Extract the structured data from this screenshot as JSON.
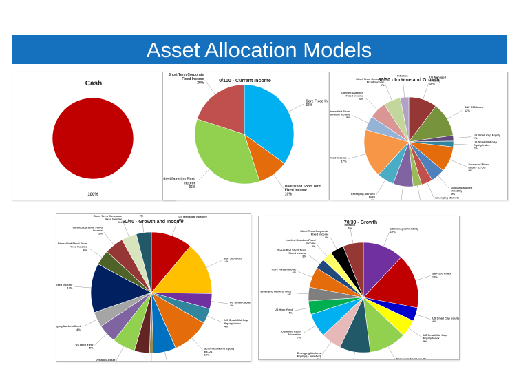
{
  "slide": {
    "title": "Asset Allocation Models"
  },
  "chart_data": [
    {
      "type": "pie",
      "title": "Cash",
      "slices": [
        {
          "label": "",
          "pct_label": "100%",
          "value": 100,
          "color": "#c00000"
        }
      ]
    },
    {
      "type": "pie",
      "title": "0/100 - Current Income",
      "slices": [
        {
          "label": "Core Fixed Income",
          "pct_label": "35%",
          "value": 35,
          "color": "#00b0f0"
        },
        {
          "label": "Diversified Short Term Fixed Income",
          "pct_label": "10%",
          "value": 10,
          "color": "#e46c0a"
        },
        {
          "label": "Limited Duration Fixed Income",
          "pct_label": "35%",
          "value": 35,
          "color": "#92d050"
        },
        {
          "label": "Short Term Corporate Fixed Income",
          "pct_label": "20%",
          "value": 20,
          "color": "#c0504d"
        }
      ]
    },
    {
      "type": "pie",
      "title": "50/50 - Income and Growth",
      "slices": [
        {
          "label": "US Managed Volatility",
          "pct_label": "10%",
          "value": 10,
          "color": "#953735"
        },
        {
          "label": "S&P 500 Index",
          "pct_label": "12%",
          "value": 12,
          "color": "#77933c"
        },
        {
          "label": "US Small Cap Equity",
          "pct_label": "2%",
          "value": 2,
          "color": "#5f497a"
        },
        {
          "label": "US Small/Mid Cap Equity Index",
          "pct_label": "2%",
          "value": 2,
          "color": "#31859c"
        },
        {
          "label": "Screened World Equity Ex-US",
          "pct_label": "9%",
          "value": 9,
          "color": "#e46c0a"
        },
        {
          "label": "Global Managed Volatility",
          "pct_label": "5%",
          "value": 5,
          "color": "#4f81bd"
        },
        {
          "label": "Emerging Markets Equity (+ Frontier)",
          "pct_label": "4%",
          "value": 4,
          "color": "#c0504d"
        },
        {
          "label": "Dynamic Asset Allocation",
          "pct_label": "3%",
          "value": 3,
          "color": "#9bbb59"
        },
        {
          "label": "US High Yield",
          "pct_label": "7%",
          "value": 7,
          "color": "#8064a2"
        },
        {
          "label": "Emerging Markets Debt",
          "pct_label": "6%",
          "value": 6,
          "color": "#4bacc6"
        },
        {
          "label": "Core Fixed Income",
          "pct_label": "17%",
          "value": 17,
          "color": "#f79646"
        },
        {
          "label": "Diversified Short Term Fixed Income",
          "pct_label": "5%",
          "value": 5,
          "color": "#95b3d7"
        },
        {
          "label": "Limited Duration Fixed Income",
          "pct_label": "6%",
          "value": 6,
          "color": "#d99694"
        },
        {
          "label": "Short Term Corporate Fixed Income",
          "pct_label": "6%",
          "value": 6,
          "color": "#c3d69b"
        },
        {
          "label": "Inflation",
          "pct_label": "3%",
          "value": 3,
          "color": "#b2a1c7"
        }
      ]
    },
    {
      "type": "pie",
      "title": "60/40 - Growth and Income",
      "slices": [
        {
          "label": "US Managed Volatility",
          "pct_label": "11%",
          "value": 11,
          "color": "#c00000"
        },
        {
          "label": "S&P 500 Index",
          "pct_label": "14%",
          "value": 14,
          "color": "#ffc000"
        },
        {
          "label": "US Small Cap Equity",
          "pct_label": "4%",
          "value": 4,
          "color": "#7030a0"
        },
        {
          "label": "US Small/Mid Cap Equity Index",
          "pct_label": "4%",
          "value": 4,
          "color": "#31859c"
        },
        {
          "label": "Screened World Equity Ex-US",
          "pct_label": "10%",
          "value": 10,
          "color": "#e46c0a"
        },
        {
          "label": "Global Managed Volatility",
          "pct_label": "6%",
          "value": 6,
          "color": "#0070c0"
        },
        {
          "label": "Emerging Markets Equity (+ Frontier)",
          "pct_label": "1%",
          "value": 1,
          "color": "#948a54"
        },
        {
          "label": "",
          "pct_label": "",
          "value": 4,
          "color": "#632523"
        },
        {
          "label": "Dynamic Asset Allocation",
          "pct_label": "6%",
          "value": 6,
          "color": "#92d050"
        },
        {
          "label": "US High Yield",
          "pct_label": "5%",
          "value": 5,
          "color": "#8064a2"
        },
        {
          "label": "Emerging Markets Debt",
          "pct_label": "4%",
          "value": 4,
          "color": "#a5a5a5"
        },
        {
          "label": "Core Fixed Income",
          "pct_label": "13%",
          "value": 13,
          "color": "#002060"
        },
        {
          "label": "Diversified Short Term Fixed Income",
          "pct_label": "4%",
          "value": 4,
          "color": "#4f6228"
        },
        {
          "label": "Limited Duration Fixed Income",
          "pct_label": "5%",
          "value": 5,
          "color": "#953735"
        },
        {
          "label": "Short Term Corporate Fixed Income",
          "pct_label": "4%",
          "value": 4,
          "color": "#d7e4bd"
        },
        {
          "label": "Inflation",
          "pct_label": "4%",
          "value": 4,
          "color": "#215968"
        }
      ]
    },
    {
      "type": "pie",
      "title": "70/30 - Growth",
      "slices": [
        {
          "label": "US Managed Volatility",
          "pct_label": "12%",
          "value": 12,
          "color": "#7030a0"
        },
        {
          "label": "S&P 500 Index",
          "pct_label": "16%",
          "value": 16,
          "color": "#c00000"
        },
        {
          "label": "US Small Cap Equity",
          "pct_label": "4%",
          "value": 4,
          "color": "#0000cc"
        },
        {
          "label": "US Small/Mid Cap Equity Index",
          "pct_label": "5%",
          "value": 5,
          "color": "#ffff00"
        },
        {
          "label": "Screened World Equity Ex-US",
          "pct_label": "11%",
          "value": 11,
          "color": "#92d050"
        },
        {
          "label": "Global Managed Volatility",
          "pct_label": "9%",
          "value": 9,
          "color": "#215968"
        },
        {
          "label": "Emerging Markets Equity (+ Frontier)",
          "pct_label": "6%",
          "value": 6,
          "color": "#e6b9b8"
        },
        {
          "label": "Dynamic Asset Allocation",
          "pct_label": "7%",
          "value": 7,
          "color": "#00b0f0"
        },
        {
          "label": "US High Yield",
          "pct_label": "4%",
          "value": 4,
          "color": "#00b050"
        },
        {
          "label": "Emerging Markets Debt",
          "pct_label": "4%",
          "value": 4,
          "color": "#7f7f7f"
        },
        {
          "label": "Core Fixed Income",
          "pct_label": "6%",
          "value": 6,
          "color": "#e46c0a"
        },
        {
          "label": "Diversified Short Term Fixed Income",
          "pct_label": "3%",
          "value": 3,
          "color": "#1f497d"
        },
        {
          "label": "Limited Duration Fixed Income",
          "pct_label": "3%",
          "value": 3,
          "color": "#ffff66"
        },
        {
          "label": "Short Term Corporate Fixed Income",
          "pct_label": "4%",
          "value": 4,
          "color": "#000000"
        },
        {
          "label": "Inflation",
          "pct_label": "6%",
          "value": 6,
          "color": "#953735"
        }
      ]
    }
  ]
}
